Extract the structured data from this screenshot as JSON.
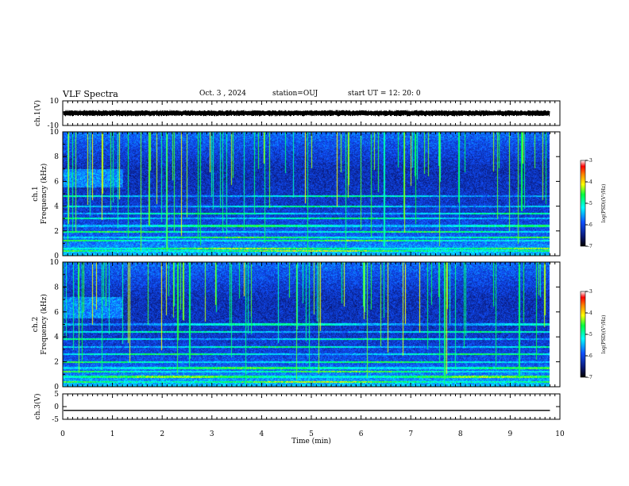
{
  "header": {
    "title": "VLF Spectra",
    "date": "Oct. 3  , 2024",
    "station": "station=OUJ",
    "start": "start  UT  =    12: 20: 0"
  },
  "chart_data": [
    {
      "type": "line",
      "name": "ch1-waveform",
      "ylabel": "ch.1(V)",
      "ylim": [
        -10,
        10
      ],
      "yticks": [
        "10",
        "-10"
      ],
      "xlim": [
        0,
        10
      ],
      "waveform_amplitude": 2.5,
      "waveform_offset": 0
    },
    {
      "type": "heatmap",
      "name": "ch1-spectrogram",
      "ylabel": "ch.1\nFrequency  (kHz)",
      "ylim": [
        0,
        10
      ],
      "yticks": [
        "0",
        "2",
        "4",
        "6",
        "8",
        "10"
      ],
      "xlim": [
        0,
        9.8
      ],
      "colorbar": {
        "label": "log(PSD)(V²/Hz)",
        "range": [
          -7,
          -3
        ],
        "ticks": [
          "-3",
          "-4",
          "-5",
          "-6",
          "-7"
        ]
      },
      "features": {
        "hiss_patch_khz": [
          5.5,
          7
        ],
        "hiss_patch_min": [
          0,
          1.2
        ],
        "strong_lines_khz": [
          0.4,
          0.6,
          1.2,
          1.5,
          1.9,
          2.4,
          3.0,
          3.4,
          4.0,
          4.8
        ]
      }
    },
    {
      "type": "heatmap",
      "name": "ch2-spectrogram",
      "ylabel": "ch.2\nFrequency  (kHz)",
      "ylim": [
        0,
        10
      ],
      "yticks": [
        "0",
        "2",
        "4",
        "6",
        "8",
        "10"
      ],
      "xlim": [
        0,
        9.8
      ],
      "colorbar": {
        "label": "log(PSD)(V²/Hz)",
        "range": [
          -7,
          -3
        ],
        "ticks": [
          "-3",
          "-4",
          "-5",
          "-6",
          "-7"
        ]
      },
      "features": {
        "hiss_patch_khz": [
          5.5,
          7.2
        ],
        "hiss_patch_min": [
          0,
          1.2
        ],
        "strong_lines_khz": [
          0.4,
          0.8,
          1.2,
          1.5,
          2.0,
          2.6,
          3.2,
          3.8,
          4.4,
          5.0
        ]
      }
    },
    {
      "type": "line",
      "name": "ch3-waveform",
      "ylabel": "ch.3(V)",
      "ylim": [
        -5,
        5
      ],
      "yticks": [
        "5",
        "0",
        "-5"
      ],
      "xlim": [
        0,
        10
      ],
      "constant_value": -1.5
    }
  ],
  "xaxis": {
    "label": "Time  (min)",
    "ticks": [
      "0",
      "1",
      "2",
      "3",
      "4",
      "5",
      "6",
      "7",
      "8",
      "9",
      "10"
    ]
  },
  "colors": {
    "background": "#ffffff",
    "axes": "#000000",
    "cmap": [
      "#000000",
      "#0a1a7a",
      "#1050ff",
      "#00ffff",
      "#00ff40",
      "#ffff00",
      "#ff8000",
      "#ff0000",
      "#ffffff"
    ]
  }
}
